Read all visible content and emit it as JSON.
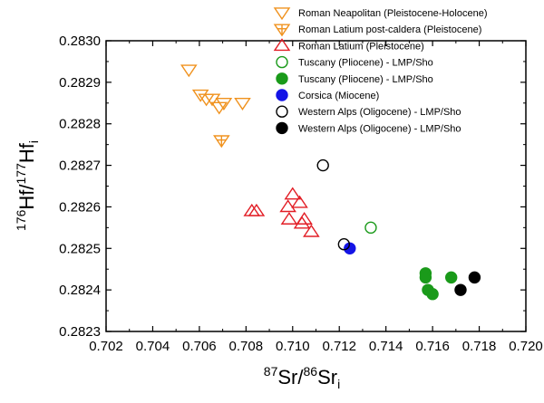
{
  "chart_data": {
    "type": "scatter",
    "xlabel": {
      "pre_sup": "87",
      "base": "Sr/",
      "mid_sup": "86",
      "base2": "Sr",
      "sub": "i"
    },
    "ylabel": {
      "pre_sup": "176",
      "base": "Hf/",
      "mid_sup": "177",
      "base2": "Hf",
      "sub": "i"
    },
    "xlim": [
      0.702,
      0.72
    ],
    "ylim": [
      0.2823,
      0.283
    ],
    "x_ticks": [
      "0.702",
      "0.704",
      "0.706",
      "0.708",
      "0.710",
      "0.712",
      "0.714",
      "0.716",
      "0.718",
      "0.720"
    ],
    "y_ticks": [
      "0.2823",
      "0.2824",
      "0.2825",
      "0.2826",
      "0.2827",
      "0.2828",
      "0.2829",
      "0.2830"
    ],
    "legend_position": "top-right",
    "series": [
      {
        "name": "Roman Neapolitan (Pleistocene-Holocene)",
        "marker": "triangle-down",
        "filled": false,
        "color": "#f0921e",
        "points": [
          [
            0.70555,
            0.28293
          ],
          [
            0.70605,
            0.28287
          ],
          [
            0.7063,
            0.28286
          ],
          [
            0.70655,
            0.28286
          ],
          [
            0.70685,
            0.28284
          ],
          [
            0.70705,
            0.28285
          ],
          [
            0.70785,
            0.28285
          ]
        ]
      },
      {
        "name": "Roman Latium post-caldera (Pleistocene)",
        "marker": "triangle-down-plus",
        "filled": false,
        "color": "#f0921e",
        "points": [
          [
            0.70695,
            0.28276
          ]
        ]
      },
      {
        "name": "Roman Latium (Pleistocene)",
        "marker": "triangle-up",
        "filled": false,
        "color": "#e21e26",
        "points": [
          [
            0.70825,
            0.28259
          ],
          [
            0.70845,
            0.28259
          ],
          [
            0.7098,
            0.2826
          ],
          [
            0.71,
            0.28263
          ],
          [
            0.70985,
            0.28257
          ],
          [
            0.7103,
            0.28261
          ],
          [
            0.7105,
            0.28257
          ],
          [
            0.7104,
            0.28256
          ],
          [
            0.7108,
            0.28254
          ]
        ]
      },
      {
        "name": "Tuscany (Pliocene) - LMP/Sho",
        "marker": "circle",
        "filled": false,
        "color": "#1a9a1a",
        "points": [
          [
            0.71335,
            0.28255
          ]
        ]
      },
      {
        "name": "Tuscany (Pliocene) - LMP/Sho",
        "marker": "circle",
        "filled": true,
        "color": "#1a9a1a",
        "points": [
          [
            0.7157,
            0.28244
          ],
          [
            0.7157,
            0.28243
          ],
          [
            0.7158,
            0.2824
          ],
          [
            0.716,
            0.28239
          ],
          [
            0.7168,
            0.28243
          ]
        ]
      },
      {
        "name": "Corsica (Miocene)",
        "marker": "circle",
        "filled": true,
        "color": "#1414e6",
        "points": [
          [
            0.71245,
            0.2825
          ]
        ]
      },
      {
        "name": "Western Alps (Oligocene) - LMP/Sho",
        "marker": "circle",
        "filled": false,
        "color": "#000000",
        "points": [
          [
            0.7113,
            0.2827
          ],
          [
            0.7122,
            0.28251
          ]
        ]
      },
      {
        "name": "Western Alps (Oligocene) - LMP/Sho",
        "marker": "circle",
        "filled": true,
        "color": "#000000",
        "points": [
          [
            0.7172,
            0.2824
          ],
          [
            0.7178,
            0.28243
          ]
        ]
      }
    ]
  }
}
